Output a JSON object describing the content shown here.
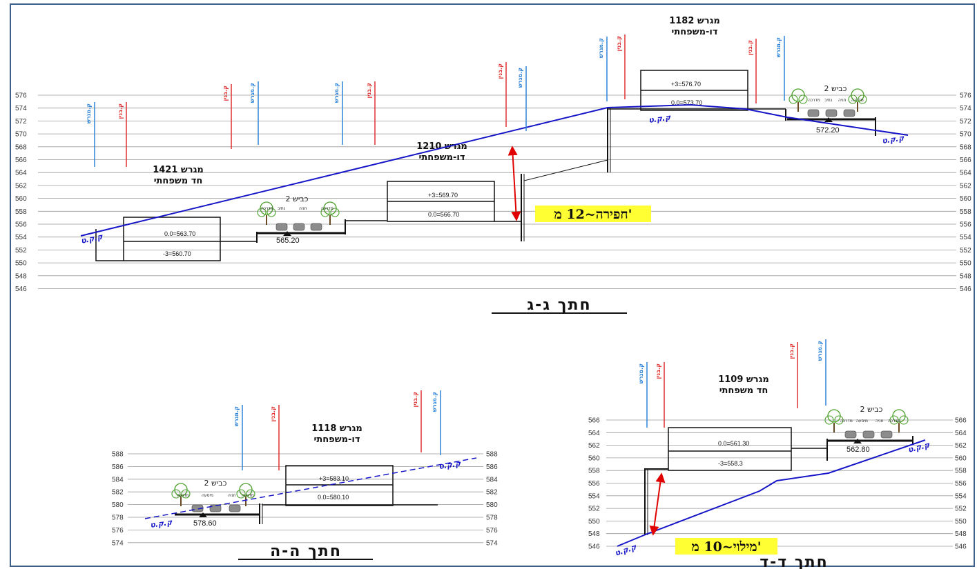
{
  "sections": {
    "gg": {
      "title": "חתך ג-ג",
      "ticks": [
        "576",
        "574",
        "572",
        "570",
        "568",
        "566",
        "564",
        "562",
        "560",
        "558",
        "556",
        "554",
        "552",
        "550",
        "548",
        "546"
      ],
      "plots": {
        "p1421": {
          "name": "מגרש 1421",
          "type": "חד משפחתי",
          "upper": "0.0=563.70",
          "lower": "-3=560.70"
        },
        "p1210": {
          "name": "מגרש 1210",
          "type": "דו-משפחתי",
          "upper": "+3=569.70",
          "lower": "0.0=566.70"
        },
        "p1182": {
          "name": "מגרש 1182",
          "type": "דו-משפחתי",
          "upper": "+3=576.70",
          "lower": "0.0=573.70"
        }
      },
      "road_left": {
        "label": "כביש 2",
        "elevation": "565.20",
        "lanes": [
          "מדרכה",
          "נתיב",
          "חניה",
          "מדרכה"
        ]
      },
      "road_right": {
        "label": "כביש 2",
        "elevation": "572.20",
        "lanes": [
          "מדרכה",
          "נתיב",
          "חניה",
          "מדרכה"
        ]
      },
      "callout": "חפירה~12 מ'"
    },
    "hh": {
      "title": "חתך ה-ה",
      "ticks": [
        "588",
        "586",
        "584",
        "582",
        "580",
        "578",
        "576",
        "574"
      ],
      "plot": {
        "name": "מגרש 1118",
        "type": "דו-משפחתי",
        "upper": "+3=583.10",
        "lower": "0.0=580.10"
      },
      "road": {
        "label": "כביש 2",
        "elevation": "578.60",
        "lanes": [
          "מדרכה",
          "מיסעה",
          "חניה",
          "מדרכה"
        ]
      }
    },
    "dd": {
      "title": "חתך ד-ד",
      "ticks": [
        "566",
        "564",
        "562",
        "560",
        "558",
        "556",
        "554",
        "552",
        "550",
        "548",
        "546"
      ],
      "plot": {
        "name": "מגרש 1109",
        "type": "חד משפחתי",
        "upper": "0.0=561.30",
        "lower": "-3=558.3"
      },
      "road": {
        "label": "כביש 2",
        "elevation": "562.80",
        "lanes": [
          "מדרכה",
          "מיסעה",
          "חניה",
          "מדרכה"
        ]
      },
      "callout": "מילוי~10 מ'"
    }
  },
  "labels": {
    "ground": "ק.ק.ט",
    "line_plan": "ק.מגרש",
    "line_build": "ק.בנין"
  },
  "colors": {
    "ground_line": "#1616c8",
    "build_line": "#e03030",
    "plan_line": "#2a82d8",
    "callout_bg": "#ffff33",
    "arrow": "#e00000"
  }
}
